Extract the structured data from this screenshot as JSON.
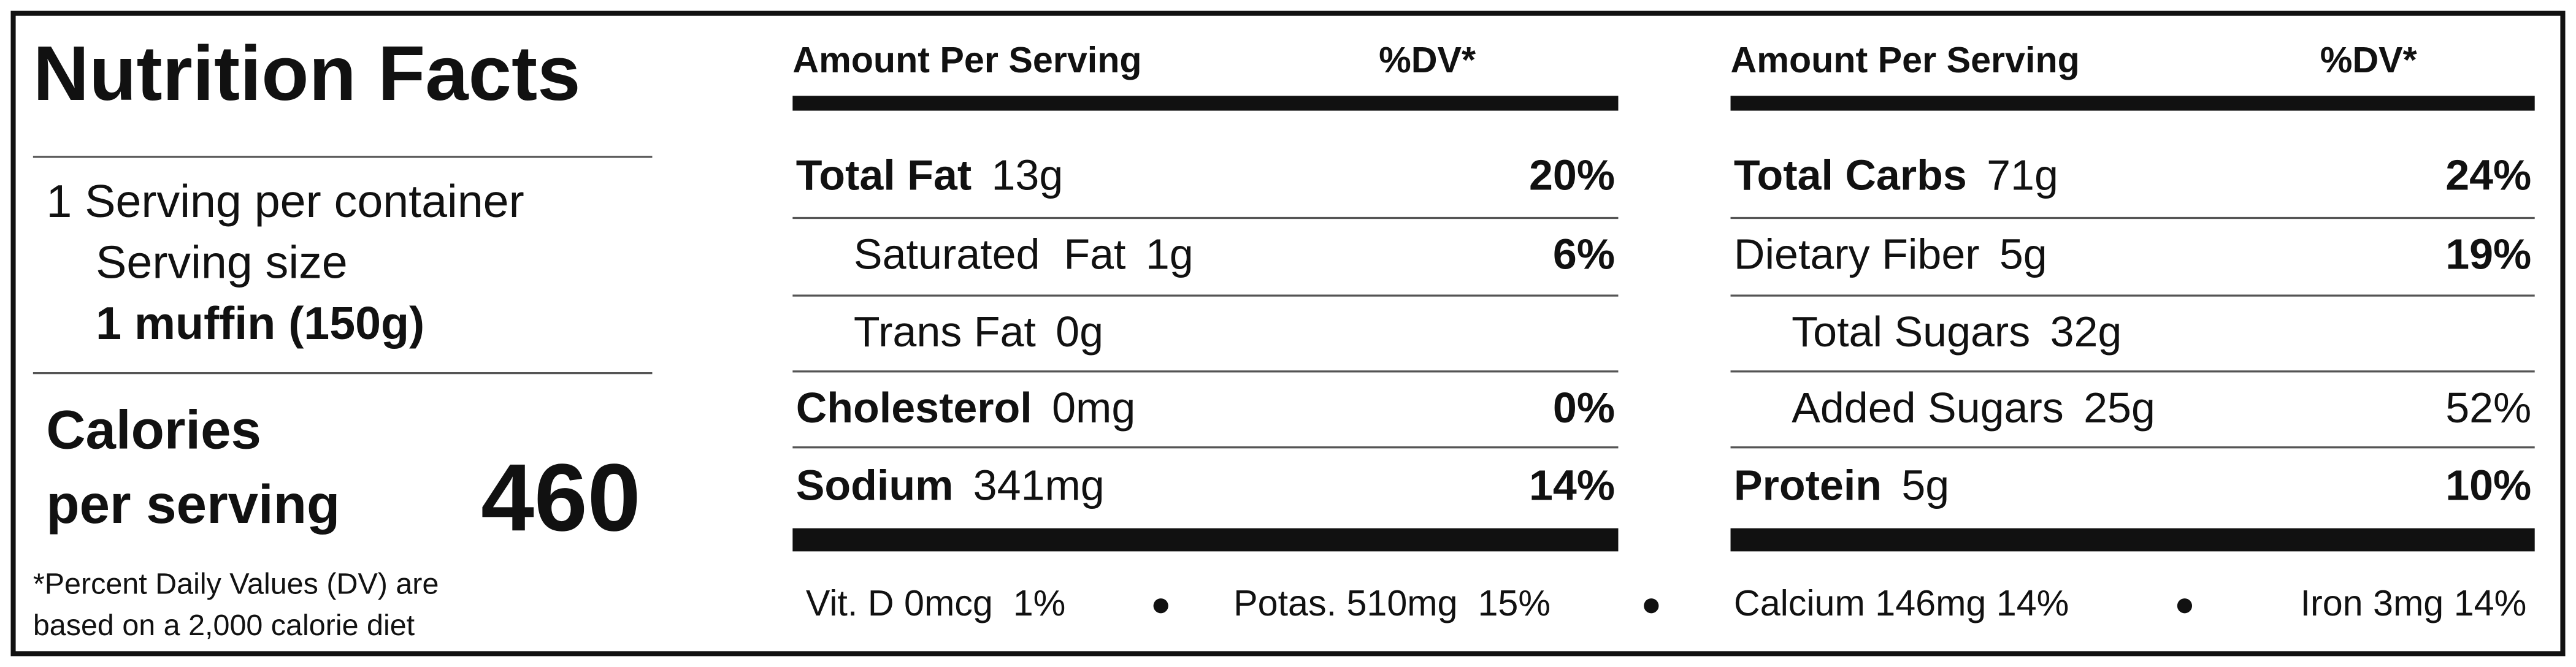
{
  "title": "Nutrition Facts",
  "servings": "1 Serving per container",
  "serving_size_label": "Serving size",
  "serving_size": "1 muffin (150g)",
  "calories_label": [
    "Calories",
    "per serving"
  ],
  "calories": 460,
  "footnote": [
    "*Percent Daily Values (DV) are",
    "based on a 2,000 calorie diet"
  ],
  "columns": [
    {
      "header": {
        "amount": "Amount Per Serving",
        "dv": "%DV*"
      },
      "rows": [
        {
          "name": "Total Fat",
          "amount": "13g",
          "dv": "20%",
          "bold": true,
          "indent": false,
          "dv_bold": true
        },
        {
          "name": "Saturated  Fat",
          "amount": "1g",
          "dv": "6%",
          "bold": false,
          "indent": true,
          "dv_bold": true
        },
        {
          "name": "Trans Fat",
          "amount": "0g",
          "bold": false,
          "indent": true
        },
        {
          "name": "Cholesterol",
          "amount": "0mg",
          "dv": "0%",
          "bold": true,
          "indent": false,
          "dv_bold": true
        },
        {
          "name": "Sodium",
          "amount": "341mg",
          "dv": "14%",
          "bold": true,
          "indent": false,
          "dv_bold": true
        }
      ]
    },
    {
      "header": {
        "amount": "Amount Per Serving",
        "dv": "%DV*"
      },
      "rows": [
        {
          "name": "Total Carbs",
          "amount": "71g",
          "dv": "24%",
          "bold": true,
          "indent": false,
          "dv_bold": true
        },
        {
          "name": "Dietary Fiber",
          "amount": "5g",
          "dv": "19%",
          "bold": false,
          "indent": false,
          "dv_bold": true
        },
        {
          "name": "Total Sugars",
          "amount": "32g",
          "bold": false,
          "indent": true
        },
        {
          "name": "Added Sugars",
          "amount": "25g",
          "dv": "52%",
          "bold": false,
          "indent": true,
          "dv_bold": false
        },
        {
          "name": "Protein",
          "amount": "5g",
          "dv": "10%",
          "bold": true,
          "indent": false,
          "dv_bold": true
        }
      ]
    }
  ],
  "footer_items": [
    "Vit. D 0mcg  1%",
    "Potas. 510mg  15%",
    "Calcium 146mg 14%",
    "Iron 3mg 14%"
  ]
}
